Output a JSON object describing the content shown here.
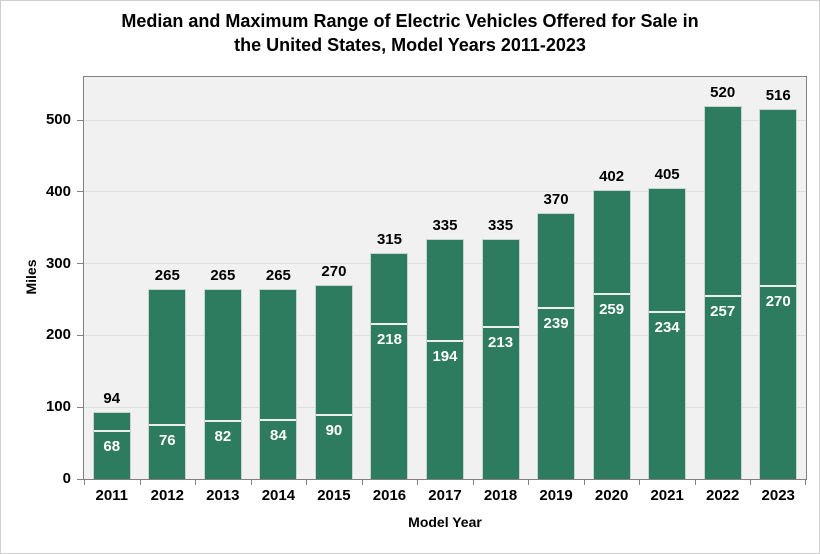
{
  "chart_data": {
    "type": "bar",
    "title": "Median and Maximum Range of Electric Vehicles Offered for Sale in the United States, Model Years 2011-2023",
    "title_lines": [
      "Median and Maximum Range of Electric Vehicles Offered for Sale in",
      "the United States, Model Years 2011-2023"
    ],
    "xlabel": "Model Year",
    "ylabel": "Miles",
    "categories": [
      "2011",
      "2012",
      "2013",
      "2014",
      "2015",
      "2016",
      "2017",
      "2018",
      "2019",
      "2020",
      "2021",
      "2022",
      "2023"
    ],
    "series": [
      {
        "name": "Maximum range",
        "values": [
          94,
          265,
          265,
          265,
          270,
          315,
          335,
          335,
          370,
          402,
          405,
          520,
          516
        ]
      },
      {
        "name": "Median range",
        "values": [
          68,
          76,
          82,
          84,
          90,
          218,
          194,
          213,
          239,
          259,
          234,
          257,
          270
        ]
      }
    ],
    "ylim": [
      0,
      560
    ],
    "yticks": [
      0,
      100,
      200,
      300,
      400,
      500
    ],
    "grid": true,
    "legend_position": "none",
    "colors": {
      "bar_fill": "#2e7c5f",
      "bar_edge": "#c9d4cf",
      "median_line": "#ededed",
      "median_label": "#ffffff",
      "max_label": "#000000",
      "plot_background": "#f1f1f1",
      "gridline": "#dedede",
      "axis": "#808080",
      "canvas_border": "#cfcfcf"
    }
  }
}
